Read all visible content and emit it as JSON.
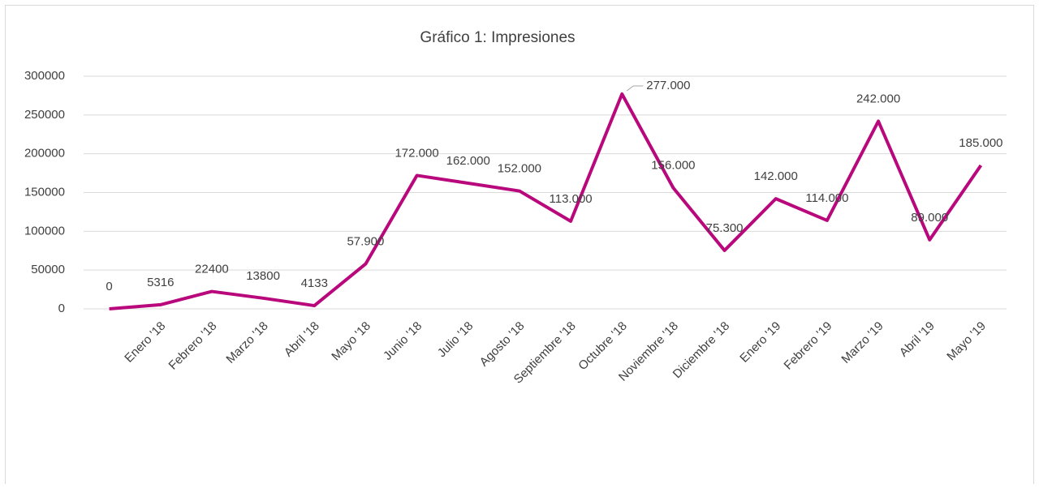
{
  "chart_data": {
    "type": "line",
    "title": "Gráfico 1: Impresiones",
    "categories": [
      null,
      "Enero '18",
      "Febrero '18",
      "Marzo '18",
      "Abril '18",
      "Mayo '18",
      "Junio '18",
      "Julio '18",
      "Agosto '18",
      "Septiembre '18",
      "Octubre '18",
      "Noviembre '18",
      "Diciembre '18",
      "Enero '19",
      "Febrero '19",
      "Marzo '19",
      "Abril '19",
      "Mayo '19"
    ],
    "series": [
      {
        "name": "Impresiones",
        "color": "#b8087c",
        "values": [
          0,
          5316,
          22400,
          13800,
          4133,
          57900,
          172000,
          162000,
          152000,
          113000,
          277000,
          156000,
          75300,
          142000,
          114000,
          242000,
          89000,
          185000
        ],
        "value_labels": [
          "0",
          "5316",
          "22400",
          "13800",
          "4133",
          "57.900",
          "172.000",
          "162.000",
          "152.000",
          "113.000",
          "277.000",
          "156.000",
          "75.300",
          "142.000",
          "114.000",
          "242.000",
          "89.000",
          "185.000"
        ]
      }
    ],
    "ylim": [
      0,
      300000
    ],
    "yticks": [
      0,
      50000,
      100000,
      150000,
      200000,
      250000,
      300000
    ],
    "grid": true
  }
}
